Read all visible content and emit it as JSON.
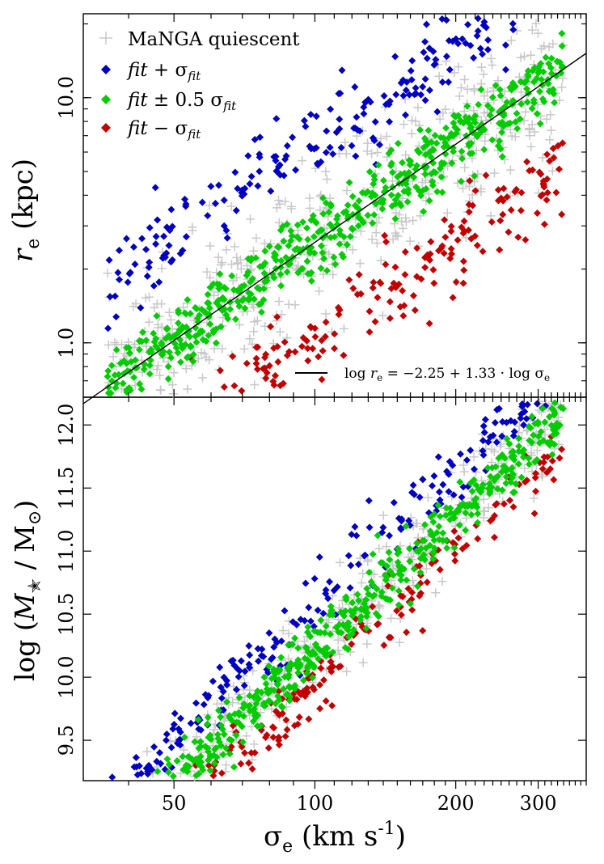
{
  "chart_data": [
    {
      "type": "scatter",
      "panel": "top",
      "x_scale": "log",
      "y_scale": "log",
      "xlim": [
        32,
        380
      ],
      "ylim": [
        0.6,
        22
      ],
      "yticks": [
        {
          "value": 1.0,
          "label": "1.0"
        },
        {
          "value": 10.0,
          "label": "10.0"
        }
      ],
      "ylabel_italic": "r",
      "ylabel_sub": "e",
      "ylabel_units": " (kpc)",
      "legend": [
        {
          "name": "MaNGA quiescent",
          "marker": "plus",
          "color": "#c8c8c8"
        },
        {
          "name_prefix": "fit",
          "name_op": " + σ",
          "name_sub": "fit",
          "marker": "diamond",
          "color": "#0000c0"
        },
        {
          "name_prefix": "fit",
          "name_op": " ± 0.5 σ",
          "name_sub": "fit",
          "marker": "diamond",
          "color": "#00cc00"
        },
        {
          "name_prefix": "fit",
          "name_op": " − σ",
          "name_sub": "fit",
          "marker": "diamond",
          "color": "#c00000"
        }
      ],
      "fit_line": {
        "intercept": -2.25,
        "slope": 1.33,
        "label_left": "log ",
        "label_var": "r",
        "label_sub": "e",
        "label_right": " =  −2.25 + 1.33 · log σ",
        "label_sub2": "e"
      },
      "series": [
        {
          "name": "MaNGA quiescent",
          "trend_intercept": -2.25,
          "trend_slope": 1.33,
          "scatter_dex": 0.17,
          "n": 460
        },
        {
          "name": "fit + σfit",
          "trend_intercept": -1.85,
          "trend_slope": 1.33,
          "scatter_dex": 0.09,
          "n": 230
        },
        {
          "name": "fit ± 0.5 σfit",
          "trend_intercept": -2.25,
          "trend_slope": 1.33,
          "scatter_dex": 0.07,
          "n": 560
        },
        {
          "name": "fit − σfit",
          "trend_intercept": -2.65,
          "trend_slope": 1.33,
          "scatter_dex": 0.09,
          "n": 230
        }
      ]
    },
    {
      "type": "scatter",
      "panel": "bottom",
      "x_scale": "log",
      "y_scale": "linear",
      "xlim": [
        32,
        380
      ],
      "ylim": [
        9.18,
        12.22
      ],
      "yticks": [
        {
          "value": 9.5,
          "label": "9.5"
        },
        {
          "value": 10.0,
          "label": "10.0"
        },
        {
          "value": 10.5,
          "label": "10.5"
        },
        {
          "value": 11.0,
          "label": "11.0"
        },
        {
          "value": 11.5,
          "label": "11.5"
        },
        {
          "value": 12.0,
          "label": "12.0"
        }
      ],
      "xticks": [
        {
          "value": 50,
          "label": "50"
        },
        {
          "value": 100,
          "label": "100"
        },
        {
          "value": 200,
          "label": "200"
        },
        {
          "value": 300,
          "label": "300"
        }
      ],
      "xlabel_main": "σ",
      "xlabel_sub": "e",
      "xlabel_units": " (km s",
      "xlabel_sup": "-1",
      "xlabel_end": ")",
      "ylabel_prefix": "log (",
      "ylabel_var": "M",
      "ylabel_star": "✭",
      "ylabel_mid": " / M",
      "ylabel_sun": "⊙",
      "ylabel_end": ")",
      "series": [
        {
          "name": "MaNGA quiescent",
          "trend_intercept": 3.12,
          "trend_slope": 3.55,
          "scatter_dex": 0.2,
          "n": 460
        },
        {
          "name": "fit + σfit",
          "trend_intercept": 3.45,
          "trend_slope": 3.55,
          "scatter_dex": 0.14,
          "n": 230
        },
        {
          "name": "fit ± 0.5 σfit",
          "trend_intercept": 3.12,
          "trend_slope": 3.55,
          "scatter_dex": 0.12,
          "n": 560
        },
        {
          "name": "fit − σfit",
          "trend_intercept": 2.85,
          "trend_slope": 3.55,
          "scatter_dex": 0.12,
          "n": 230
        }
      ]
    }
  ]
}
